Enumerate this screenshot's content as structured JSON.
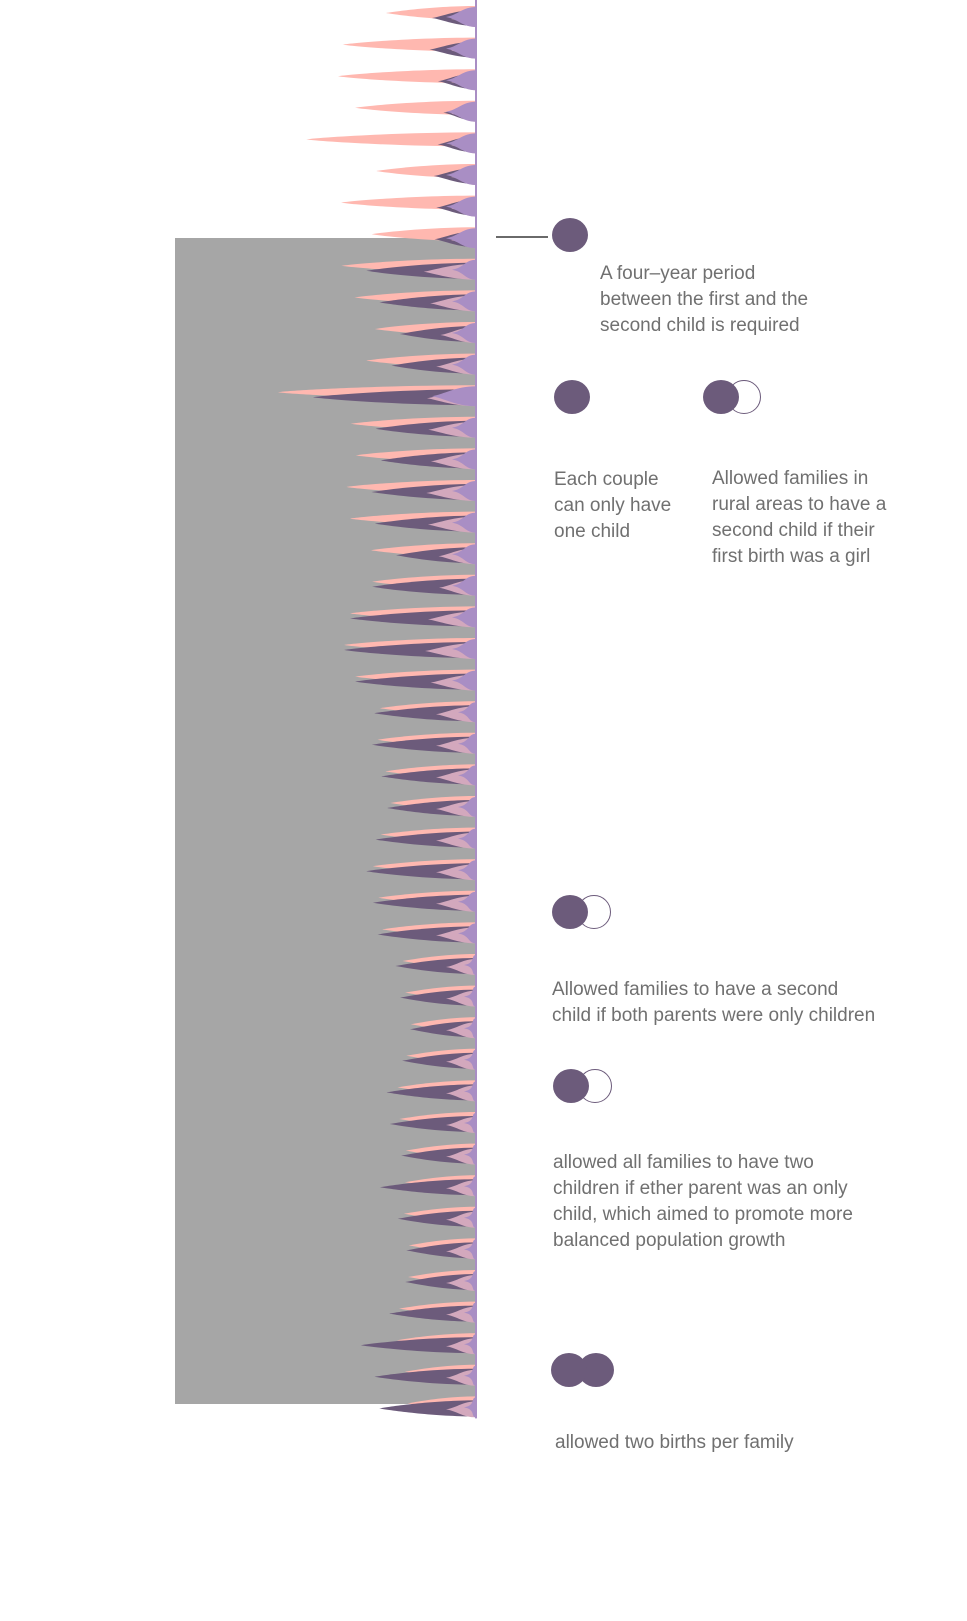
{
  "colors": {
    "background": "#ffffff",
    "grey_panel": "#a6a6a6",
    "salmon": "#ffb8b0",
    "lavender": "#a98ec4",
    "mauve": "#d3a8bd",
    "dark_purple": "#6c5b7b",
    "text": "#707070"
  },
  "policies": {
    "four_year": "A four–year period\nbetween the first and the\nsecond child is required",
    "one_child": "Each couple\ncan only have\none child",
    "rural_girl": "Allowed families in\nrural areas to have a\nsecond child if their\nfirst birth was a girl",
    "both_only": "Allowed families to have a second\nchild if both parents were only children",
    "either_only": "allowed all families to have two\nchildren if ether parent was an only\nchild, which aimed to promote more\nbalanced population growth",
    "two_births": "allowed two births per family"
  },
  "icons": {
    "four_year": "filled-circle-icon",
    "one_child": "filled-circle-icon",
    "rural_girl": "filled-and-outline-circle-icon",
    "both_only": "filled-and-outline-circle-icon",
    "either_only": "filled-and-outline-circle-icon",
    "two_births": "two-filled-circles-icon"
  }
}
